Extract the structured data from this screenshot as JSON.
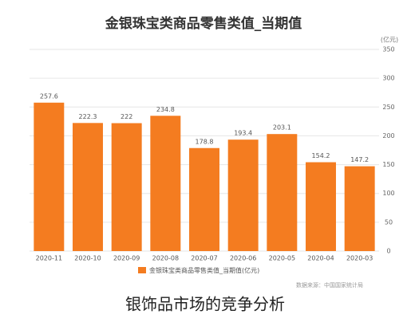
{
  "chart_data": {
    "type": "bar",
    "title": "金银珠宝类商品零售类值_当期值",
    "y_unit": "(亿元)",
    "categories": [
      "2020-11",
      "2020-10",
      "2020-09",
      "2020-08",
      "2020-07",
      "2020-06",
      "2020-05",
      "2020-04",
      "2020-03"
    ],
    "series": [
      {
        "name": "金银珠宝类商品零售类值_当期值(亿元)",
        "color": "#f47c20",
        "values": [
          257.6,
          222.3,
          222,
          234.8,
          178.8,
          193.4,
          203.1,
          154.2,
          147.2
        ]
      }
    ],
    "ylim": [
      0,
      350
    ],
    "yticks": [
      0,
      50,
      100,
      150,
      200,
      250,
      300,
      350
    ],
    "grid": true,
    "y_axis_side": "right",
    "source": "数据来源：中国国家统计局"
  },
  "caption": "银饰品市场的竞争分析"
}
